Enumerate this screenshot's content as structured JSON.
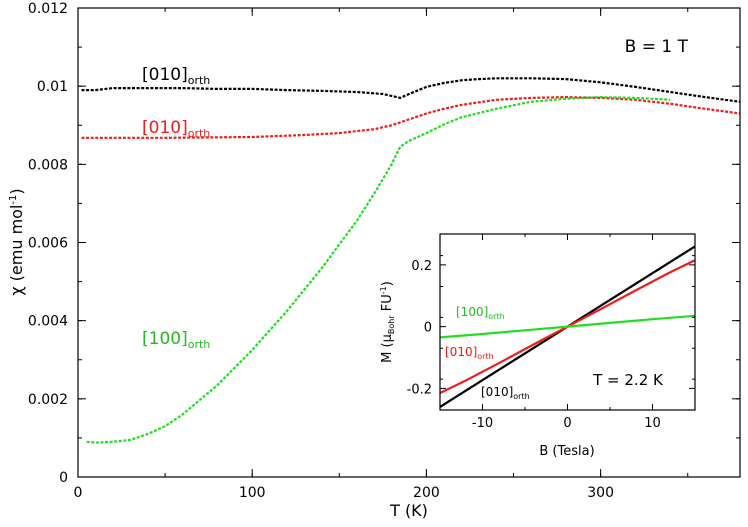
{
  "chart_data": [
    {
      "type": "line",
      "title": "",
      "annotation": "B = 1 T",
      "xlabel": "T (K)",
      "ylabel": "χ (emu mol-1)",
      "ylabel_parts": {
        "base": "χ (emu mol",
        "sup": "-1",
        "end": ")"
      },
      "xlim": [
        0,
        380
      ],
      "ylim": [
        0,
        0.012
      ],
      "xticks": [
        0,
        100,
        200,
        300
      ],
      "xtick_labels": [
        "0",
        "100",
        "200",
        "300"
      ],
      "yticks": [
        0,
        0.002,
        0.004,
        0.006,
        0.008,
        0.01,
        0.012
      ],
      "ytick_labels": [
        "0",
        "0.002",
        "0.004",
        "0.006",
        "0.008",
        "0.01",
        "0.012"
      ],
      "series": [
        {
          "name": "[010]orth (black)",
          "label": {
            "main": "[010]",
            "sub": "orth"
          },
          "color": "#000000",
          "x": [
            2,
            10,
            20,
            40,
            60,
            80,
            100,
            120,
            140,
            160,
            175,
            180,
            185,
            190,
            200,
            210,
            220,
            230,
            240,
            260,
            280,
            300,
            320,
            340,
            360,
            380
          ],
          "y": [
            0.0099,
            0.0099,
            0.00995,
            0.00995,
            0.00995,
            0.00993,
            0.00993,
            0.0099,
            0.00988,
            0.00985,
            0.0098,
            0.00975,
            0.0097,
            0.0098,
            0.00998,
            0.01008,
            0.01015,
            0.01018,
            0.0102,
            0.0102,
            0.01018,
            0.0101,
            0.00998,
            0.00985,
            0.00972,
            0.0096
          ]
        },
        {
          "name": "[010]orth (red)",
          "label": {
            "main": "[010]",
            "sub": "orth"
          },
          "color": "#ee1c1c",
          "x": [
            2,
            20,
            50,
            100,
            130,
            150,
            160,
            170,
            180,
            190,
            200,
            210,
            220,
            240,
            260,
            280,
            300,
            320,
            340,
            360,
            380
          ],
          "y": [
            0.00868,
            0.00868,
            0.00868,
            0.0087,
            0.00875,
            0.0088,
            0.00885,
            0.0089,
            0.009,
            0.00915,
            0.0093,
            0.00942,
            0.00952,
            0.00965,
            0.0097,
            0.00972,
            0.0097,
            0.00965,
            0.00955,
            0.00942,
            0.0093
          ]
        },
        {
          "name": "[100]orth (green)",
          "label": {
            "main": "[100]",
            "sub": "orth"
          },
          "color": "#22dd22",
          "x": [
            5,
            10,
            20,
            30,
            40,
            50,
            60,
            80,
            100,
            120,
            140,
            160,
            170,
            180,
            185,
            190,
            200,
            210,
            220,
            240,
            260,
            280,
            300,
            320,
            340
          ],
          "y": [
            0.0009,
            0.00088,
            0.0009,
            0.00095,
            0.0011,
            0.0013,
            0.0016,
            0.00235,
            0.00325,
            0.00425,
            0.00535,
            0.00655,
            0.00725,
            0.008,
            0.00845,
            0.0086,
            0.0088,
            0.00902,
            0.0092,
            0.00942,
            0.0096,
            0.00968,
            0.00972,
            0.0097,
            0.00965
          ]
        }
      ]
    },
    {
      "type": "line",
      "title": "",
      "annotation": "T = 2.2 K",
      "xlabel": "B (Tesla)",
      "ylabel_parts": {
        "m": "M (μ",
        "sub": "Bohr",
        "mid": " FU",
        "sup": "-1",
        "end": ")"
      },
      "xlim": [
        -15,
        15
      ],
      "ylim": [
        -0.27,
        0.3
      ],
      "xticks": [
        -10,
        0,
        10
      ],
      "xtick_labels": [
        "-10",
        "0",
        "10"
      ],
      "yticks": [
        -0.2,
        0,
        0.2
      ],
      "ytick_labels": [
        "-0.2",
        "0",
        "0.2"
      ],
      "series": [
        {
          "name": "[010]orth (black)",
          "label": {
            "main": "[010]",
            "sub": "orth"
          },
          "color": "#000000",
          "x": [
            -15,
            15
          ],
          "y": [
            -0.26,
            0.26
          ]
        },
        {
          "name": "[010]orth (red)",
          "label": {
            "main": "[010]",
            "sub": "orth"
          },
          "color": "#ee1c1c",
          "x": [
            -15,
            -12,
            -8,
            -4,
            0,
            4,
            8,
            12,
            15
          ],
          "y": [
            -0.215,
            -0.175,
            -0.117,
            -0.058,
            0,
            0.058,
            0.117,
            0.175,
            0.215
          ]
        },
        {
          "name": "[100]orth (green)",
          "label": {
            "main": "[100]",
            "sub": "orth"
          },
          "color": "#22dd22",
          "x": [
            -15,
            -10,
            -5,
            0,
            5,
            10,
            15
          ],
          "y": [
            -0.035,
            -0.024,
            -0.012,
            0,
            0.012,
            0.024,
            0.035
          ]
        }
      ]
    }
  ]
}
